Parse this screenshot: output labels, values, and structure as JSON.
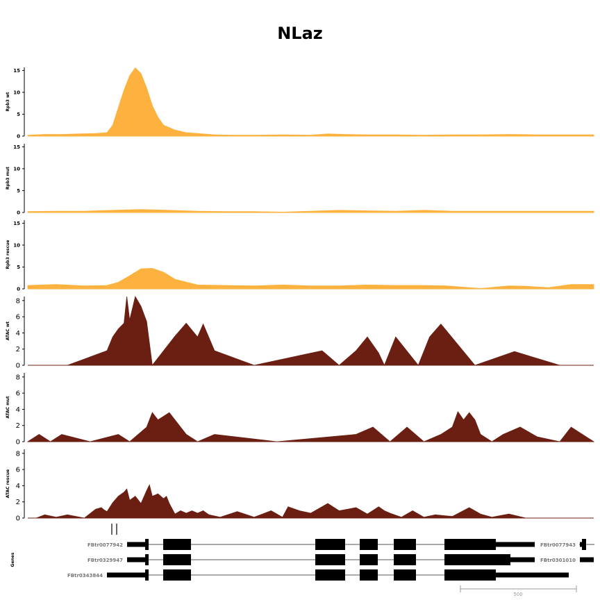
{
  "title": "NLaz",
  "colors": {
    "rna": "#fdb23f",
    "atac": "#6b1f12",
    "gene": "#000000",
    "gene_label": "#777777",
    "scale": "#999999"
  },
  "chart_data": [
    {
      "type": "area",
      "ylabel": "Rpb3 wt",
      "ylim": [
        0,
        15.7
      ],
      "yticks": [
        0,
        5,
        10,
        15
      ],
      "color": "#fdb23f",
      "x": [
        0,
        0.03,
        0.06,
        0.09,
        0.12,
        0.14,
        0.15,
        0.16,
        0.17,
        0.18,
        0.19,
        0.2,
        0.21,
        0.22,
        0.23,
        0.24,
        0.26,
        0.28,
        0.3,
        0.33,
        0.36,
        0.4,
        0.45,
        0.5,
        0.53,
        0.56,
        0.6,
        0.65,
        0.7,
        0.75,
        0.8,
        0.85,
        0.9,
        0.95,
        1.0
      ],
      "values": [
        0.2,
        0.4,
        0.4,
        0.5,
        0.6,
        0.8,
        2.5,
        6.5,
        10.5,
        13.8,
        15.6,
        14.3,
        11.0,
        7.0,
        4.3,
        2.5,
        1.4,
        0.8,
        0.6,
        0.3,
        0.2,
        0.2,
        0.3,
        0.2,
        0.5,
        0.4,
        0.3,
        0.3,
        0.2,
        0.3,
        0.3,
        0.4,
        0.3,
        0.3,
        0.3
      ]
    },
    {
      "type": "area",
      "ylabel": "Rpb3 mut",
      "ylim": [
        0,
        15.7
      ],
      "yticks": [
        0,
        5,
        10,
        15
      ],
      "color": "#fdb23f",
      "x": [
        0,
        0.05,
        0.1,
        0.15,
        0.2,
        0.25,
        0.3,
        0.35,
        0.4,
        0.45,
        0.5,
        0.55,
        0.6,
        0.65,
        0.7,
        0.75,
        0.8,
        0.85,
        0.9,
        0.95,
        1.0
      ],
      "values": [
        0.2,
        0.3,
        0.3,
        0.5,
        0.7,
        0.5,
        0.3,
        0.2,
        0.2,
        0.1,
        0.3,
        0.5,
        0.4,
        0.3,
        0.5,
        0.3,
        0.3,
        0.3,
        0.3,
        0.3,
        0.3
      ]
    },
    {
      "type": "area",
      "ylabel": "Rpb3 rescue",
      "ylim": [
        0,
        15.7
      ],
      "yticks": [
        0,
        5,
        10,
        15
      ],
      "color": "#fdb23f",
      "x": [
        0,
        0.05,
        0.1,
        0.14,
        0.16,
        0.18,
        0.2,
        0.22,
        0.24,
        0.26,
        0.3,
        0.35,
        0.4,
        0.45,
        0.5,
        0.55,
        0.6,
        0.65,
        0.7,
        0.74,
        0.8,
        0.85,
        0.88,
        0.92,
        0.96,
        1.0
      ],
      "values": [
        0.8,
        1.0,
        0.7,
        0.8,
        1.5,
        3.0,
        4.6,
        4.7,
        3.8,
        2.2,
        0.9,
        0.8,
        0.7,
        0.9,
        0.7,
        0.7,
        0.9,
        0.8,
        0.8,
        0.7,
        0.1,
        0.7,
        0.6,
        0.3,
        1.0,
        1.0
      ]
    },
    {
      "type": "area",
      "ylabel": "ATAC wt",
      "ylim": [
        0,
        8.5
      ],
      "yticks": [
        0,
        2,
        4,
        6,
        8
      ],
      "color": "#6b1f12",
      "x": [
        0,
        0.07,
        0.14,
        0.15,
        0.16,
        0.17,
        0.175,
        0.18,
        0.19,
        0.2,
        0.21,
        0.22,
        0.26,
        0.28,
        0.3,
        0.31,
        0.33,
        0.4,
        0.52,
        0.55,
        0.58,
        0.6,
        0.62,
        0.63,
        0.65,
        0.69,
        0.71,
        0.73,
        0.79,
        0.86,
        0.94,
        1.0
      ],
      "values": [
        0,
        0,
        1.8,
        3.5,
        4.5,
        5.2,
        8.5,
        5.6,
        8.5,
        7.3,
        5.4,
        0,
        3.6,
        5.2,
        3.5,
        5.1,
        1.8,
        0,
        1.8,
        0,
        1.8,
        3.5,
        1.5,
        0,
        3.5,
        0,
        3.5,
        5.1,
        0,
        1.7,
        0,
        0
      ]
    },
    {
      "type": "area",
      "ylabel": "ATAC mut",
      "ylim": [
        0,
        8.5
      ],
      "yticks": [
        0,
        2,
        4,
        6,
        8
      ],
      "color": "#6b1f12",
      "x": [
        0,
        0.02,
        0.04,
        0.06,
        0.11,
        0.16,
        0.18,
        0.21,
        0.22,
        0.23,
        0.25,
        0.26,
        0.28,
        0.3,
        0.33,
        0.44,
        0.58,
        0.61,
        0.64,
        0.67,
        0.7,
        0.73,
        0.75,
        0.76,
        0.77,
        0.78,
        0.79,
        0.8,
        0.82,
        0.84,
        0.87,
        0.9,
        0.94,
        0.96,
        1.0
      ],
      "values": [
        0,
        0.9,
        0,
        0.9,
        0,
        0.9,
        0,
        1.8,
        3.6,
        2.7,
        3.6,
        2.7,
        0.9,
        0,
        0.9,
        0,
        0.9,
        1.8,
        0,
        1.8,
        0,
        0.9,
        1.8,
        3.7,
        2.7,
        3.6,
        2.7,
        0.9,
        0,
        0.9,
        1.8,
        0.6,
        0,
        1.8,
        0
      ]
    },
    {
      "type": "area",
      "ylabel": "ATAC rescue",
      "ylim": [
        0,
        8.5
      ],
      "yticks": [
        0,
        2,
        4,
        6,
        8
      ],
      "color": "#6b1f12",
      "x": [
        0,
        0.015,
        0.03,
        0.05,
        0.07,
        0.1,
        0.12,
        0.13,
        0.135,
        0.14,
        0.15,
        0.16,
        0.17,
        0.175,
        0.18,
        0.19,
        0.2,
        0.21,
        0.215,
        0.22,
        0.23,
        0.24,
        0.245,
        0.25,
        0.26,
        0.27,
        0.28,
        0.29,
        0.3,
        0.31,
        0.32,
        0.34,
        0.37,
        0.4,
        0.43,
        0.45,
        0.46,
        0.48,
        0.5,
        0.53,
        0.55,
        0.58,
        0.6,
        0.62,
        0.63,
        0.64,
        0.66,
        0.68,
        0.7,
        0.72,
        0.75,
        0.78,
        0.8,
        0.82,
        0.85,
        0.88,
        0.91,
        0.94,
        0.97,
        1.0
      ],
      "values": [
        0,
        0,
        0.4,
        0.1,
        0.4,
        0,
        1.1,
        1.3,
        1.0,
        0.8,
        1.9,
        2.7,
        3.2,
        3.6,
        2.2,
        2.7,
        1.8,
        3.4,
        4.1,
        2.7,
        3.0,
        2.4,
        2.7,
        1.8,
        0.5,
        0.9,
        0.6,
        0.9,
        0.6,
        0.9,
        0.4,
        0.1,
        0.8,
        0.1,
        0.9,
        0.1,
        1.4,
        0.9,
        0.6,
        1.8,
        0.9,
        1.3,
        0.5,
        1.4,
        0.9,
        0.6,
        0.1,
        0.9,
        0.1,
        0.4,
        0.2,
        1.3,
        0.5,
        0.1,
        0.5,
        0,
        0,
        0,
        0,
        0
      ]
    }
  ],
  "genes": {
    "ylabel": "Genes",
    "transcripts": [
      {
        "label": "FBtr0077942"
      },
      {
        "label": "FBtr0329947"
      },
      {
        "label": "FBtr0343844"
      }
    ],
    "right_labels": [
      "FBtr0077943",
      "FBtr0301010"
    ],
    "scale_label": "500"
  }
}
